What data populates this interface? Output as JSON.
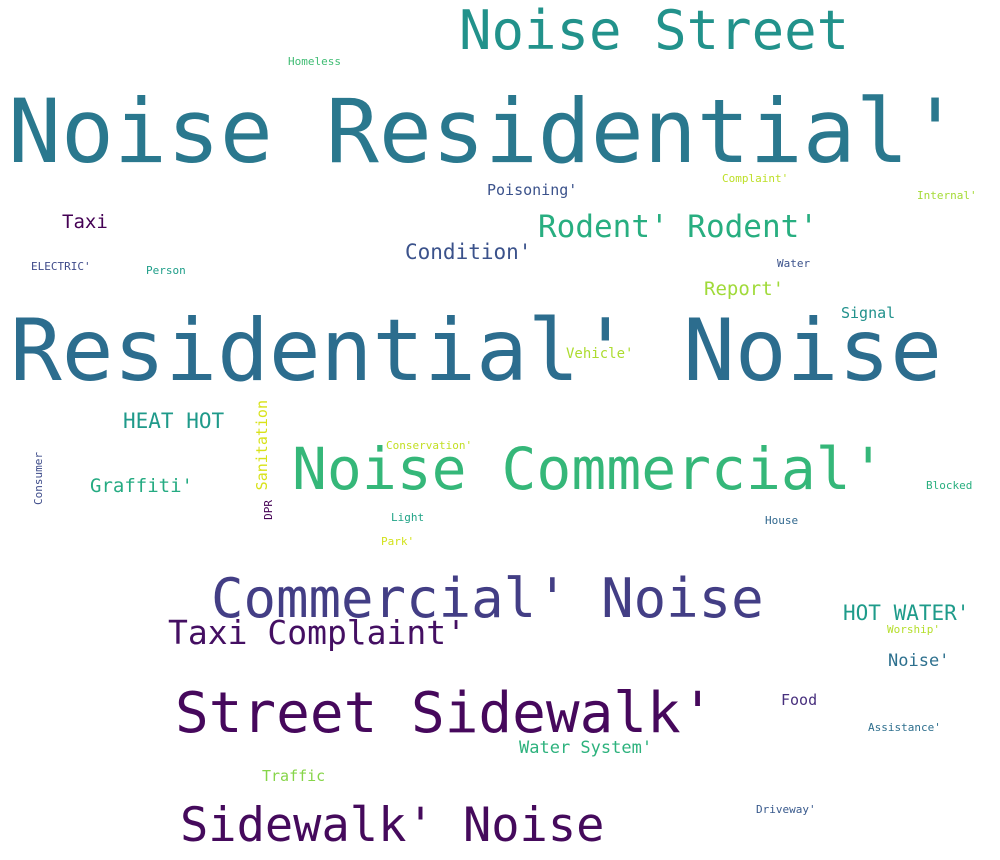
{
  "words": [
    {
      "text": "Noise Street",
      "color": "#22928b"
    },
    {
      "text": "Homeless",
      "color": "#3fbc73"
    },
    {
      "text": "Noise Residential'",
      "color": "#2a788e"
    },
    {
      "text": "Poisoning'",
      "color": "#3b528b"
    },
    {
      "text": "Complaint'",
      "color": "#bddf26"
    },
    {
      "text": "Internal'",
      "color": "#a5db36"
    },
    {
      "text": "Taxi",
      "color": "#440154"
    },
    {
      "text": "Rodent' Rodent'",
      "color": "#28ae80"
    },
    {
      "text": "Condition'",
      "color": "#3b528b"
    },
    {
      "text": "ELECTRIC'",
      "color": "#3e4a89"
    },
    {
      "text": "Person",
      "color": "#1f9e89"
    },
    {
      "text": "Water",
      "color": "#3b528b"
    },
    {
      "text": "Report'",
      "color": "#a0da39"
    },
    {
      "text": "Signal",
      "color": "#21918c"
    },
    {
      "text": "Residential' Noise",
      "color": "#2c6d8e"
    },
    {
      "text": "Vehicle'",
      "color": "#addc30"
    },
    {
      "text": "HEAT HOT",
      "color": "#1f9a8a"
    },
    {
      "text": "Sanitation",
      "color": "#d8e219"
    },
    {
      "text": "Conservation'",
      "color": "#c2df23"
    },
    {
      "text": "Consumer",
      "color": "#3e4c8a"
    },
    {
      "text": "Graffiti'",
      "color": "#25ab82"
    },
    {
      "text": "Noise Commercial'",
      "color": "#35b779"
    },
    {
      "text": "Blocked",
      "color": "#29af7f"
    },
    {
      "text": "DPR",
      "color": "#440154"
    },
    {
      "text": "Light",
      "color": "#20a386"
    },
    {
      "text": "House",
      "color": "#31688e"
    },
    {
      "text": "Park'",
      "color": "#d2e21b"
    },
    {
      "text": "Commercial' Noise",
      "color": "#433e85"
    },
    {
      "text": "HOT WATER'",
      "color": "#1e9b8a"
    },
    {
      "text": "Worship'",
      "color": "#b5de2b"
    },
    {
      "text": "Taxi Complaint'",
      "color": "#440f62"
    },
    {
      "text": "Noise'",
      "color": "#2d708e"
    },
    {
      "text": "Street Sidewalk'",
      "color": "#46085c"
    },
    {
      "text": "Food",
      "color": "#472f7d"
    },
    {
      "text": "Assistance'",
      "color": "#2e6f8e"
    },
    {
      "text": "Water System'",
      "color": "#2db27d"
    },
    {
      "text": "Traffic",
      "color": "#86d549"
    },
    {
      "text": "Driveway'",
      "color": "#38598c"
    },
    {
      "text": "Sidewalk' Noise",
      "color": "#450a5c"
    }
  ]
}
